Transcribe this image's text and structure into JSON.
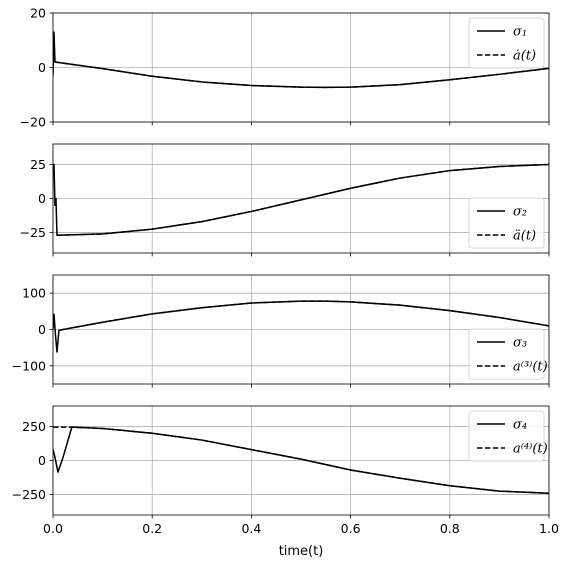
{
  "chart_data": [
    {
      "type": "line",
      "ylim": [
        -20,
        20
      ],
      "yticks": [
        "20",
        "0",
        "−20"
      ],
      "ytick_values": [
        20,
        0,
        -20
      ],
      "grid": true,
      "legend_placement": "top-right",
      "series": [
        {
          "name": "σ₁",
          "style": "solid",
          "color": "#000000",
          "x": [
            0.0,
            0.002,
            0.004,
            0.1,
            0.2,
            0.3,
            0.4,
            0.5,
            0.55,
            0.6,
            0.7,
            0.8,
            0.9,
            1.0
          ],
          "y": [
            -3,
            13,
            2,
            -0.4,
            -3.2,
            -5.3,
            -6.6,
            -7.2,
            -7.3,
            -7.2,
            -6.3,
            -4.5,
            -2.5,
            -0.3
          ]
        },
        {
          "name": "ȧ(t)",
          "style": "dashed",
          "color": "#000000",
          "x": [
            0.004,
            0.1,
            0.2,
            0.3,
            0.4,
            0.5,
            0.55,
            0.6,
            0.7,
            0.8,
            0.9,
            1.0
          ],
          "y": [
            2,
            -0.4,
            -3.2,
            -5.3,
            -6.6,
            -7.2,
            -7.3,
            -7.2,
            -6.3,
            -4.5,
            -2.5,
            -0.3
          ]
        }
      ]
    },
    {
      "type": "line",
      "ylim": [
        -40,
        40
      ],
      "yticks": [
        "25",
        "0",
        "−25"
      ],
      "ytick_values": [
        25,
        0,
        -25
      ],
      "grid": true,
      "legend_placement": "bottom-right",
      "series": [
        {
          "name": "σ₂",
          "style": "solid",
          "color": "#000000",
          "x": [
            0.0,
            0.002,
            0.004,
            0.006,
            0.008,
            0.1,
            0.2,
            0.3,
            0.4,
            0.5,
            0.6,
            0.7,
            0.8,
            0.9,
            1.0
          ],
          "y": [
            18,
            25,
            -5,
            0,
            -27,
            -26,
            -22.5,
            -17,
            -9.5,
            -1,
            7.5,
            15,
            20.5,
            23.5,
            25
          ]
        },
        {
          "name": "ä(t)",
          "style": "dashed",
          "color": "#000000",
          "x": [
            0.008,
            0.1,
            0.2,
            0.3,
            0.4,
            0.5,
            0.6,
            0.7,
            0.8,
            0.9,
            1.0
          ],
          "y": [
            -27,
            -26,
            -22.5,
            -17,
            -9.5,
            -1,
            7.5,
            15,
            20.5,
            23.5,
            25
          ]
        }
      ]
    },
    {
      "type": "line",
      "ylim": [
        -150,
        150
      ],
      "yticks": [
        "100",
        "0",
        "−100"
      ],
      "ytick_values": [
        100,
        0,
        -100
      ],
      "grid": true,
      "legend_placement": "bottom-right",
      "series": [
        {
          "name": "σ₃",
          "style": "solid",
          "color": "#000000",
          "x": [
            0.0,
            0.002,
            0.005,
            0.008,
            0.012,
            0.1,
            0.2,
            0.3,
            0.4,
            0.5,
            0.55,
            0.6,
            0.7,
            0.8,
            0.9,
            1.0
          ],
          "y": [
            0,
            42,
            -15,
            -62,
            -2,
            20,
            43,
            60,
            73,
            78,
            78,
            76,
            67,
            52,
            33,
            10
          ]
        },
        {
          "name": "a⁽³⁾(t)",
          "style": "dashed",
          "color": "#000000",
          "x": [
            0.012,
            0.1,
            0.2,
            0.3,
            0.4,
            0.5,
            0.55,
            0.6,
            0.7,
            0.8,
            0.9,
            1.0
          ],
          "y": [
            -2,
            20,
            43,
            60,
            73,
            78,
            78,
            76,
            67,
            52,
            33,
            10
          ]
        }
      ]
    },
    {
      "type": "line",
      "ylim": [
        -400,
        400
      ],
      "yticks": [
        "250",
        "0",
        "−250"
      ],
      "ytick_values": [
        250,
        0,
        -250
      ],
      "xticks": [
        "0.0",
        "0.2",
        "0.4",
        "0.6",
        "0.8",
        "1.0"
      ],
      "xtick_values": [
        0.0,
        0.2,
        0.4,
        0.6,
        0.8,
        1.0
      ],
      "xlim": [
        0.0,
        1.0
      ],
      "xlabel": "time(t)",
      "grid": true,
      "legend_placement": "top-right",
      "series": [
        {
          "name": "σ₄",
          "style": "solid",
          "color": "#000000",
          "x": [
            0.0,
            0.003,
            0.01,
            0.02,
            0.038,
            0.1,
            0.2,
            0.3,
            0.4,
            0.5,
            0.6,
            0.7,
            0.8,
            0.9,
            1.0
          ],
          "y": [
            80,
            40,
            -85,
            20,
            245,
            235,
            200,
            150,
            80,
            10,
            -70,
            -130,
            -185,
            -225,
            -240
          ]
        },
        {
          "name": "a⁽⁴⁾(t)",
          "style": "dashed",
          "color": "#000000",
          "x": [
            0.0,
            0.038,
            0.1,
            0.2,
            0.3,
            0.4,
            0.5,
            0.6,
            0.7,
            0.8,
            0.9,
            1.0
          ],
          "y": [
            245,
            245,
            235,
            200,
            150,
            80,
            10,
            -70,
            -130,
            -185,
            -225,
            -240
          ]
        }
      ]
    }
  ]
}
